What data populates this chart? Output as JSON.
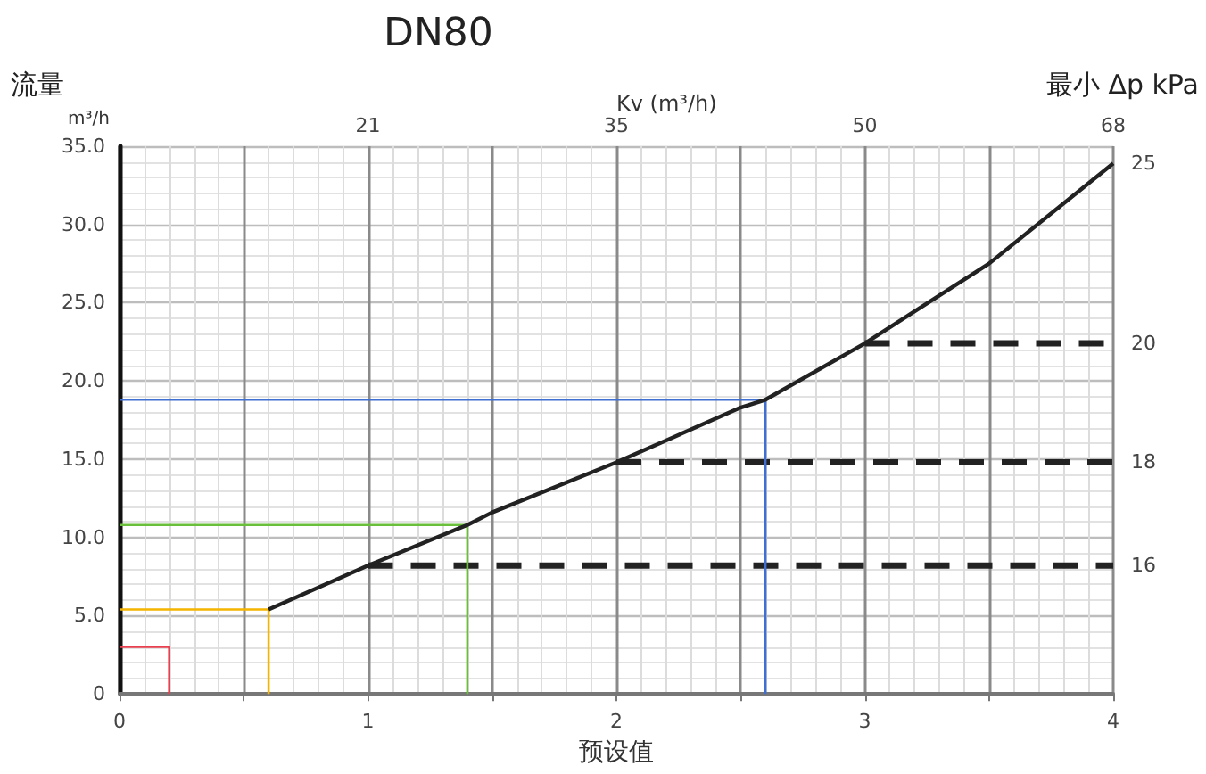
{
  "chart_data": {
    "type": "line",
    "title": "DN80",
    "xlabel": "预设值",
    "ylabel": "流量",
    "x2label": "Kv (m³/h)",
    "y2label": "最小 Δp kPa",
    "xlim": [
      0,
      4
    ],
    "xticks": [
      0,
      {
        "value": 0.5,
        "label": null
      },
      1,
      {
        "value": 1.5,
        "label": null
      },
      2,
      {
        "value": 2.5,
        "label": null
      },
      3,
      {
        "value": 3.5,
        "label": null
      },
      4
    ],
    "ylim": [
      0,
      35
    ],
    "yticks": [
      0,
      {
        "value": 5,
        "label": "5.0"
      },
      {
        "value": 10,
        "label": "10.0"
      },
      {
        "value": 15,
        "label": "15.0"
      },
      {
        "value": 20,
        "label": "20.0"
      },
      {
        "value": 25,
        "label": "25.0"
      },
      {
        "value": 30,
        "label": "30.0"
      },
      {
        "value": 35,
        "label": "35.0"
      }
    ],
    "grid": true,
    "marker": "none",
    "series": [
      {
        "name": "25",
        "color": "#222222",
        "line_style": "solid",
        "x": [
          0.6,
          1,
          1.4,
          1.5,
          2,
          2.5,
          2.6,
          3,
          3.5,
          4
        ],
        "values": [
          5.4,
          8.2,
          10.8,
          11.6,
          14.8,
          18.3,
          18.8,
          22.4,
          27.5,
          33.9
        ]
      },
      {
        "name": "16",
        "color": "#222222",
        "line_style": "dashed",
        "x": [
          1,
          4
        ],
        "values": [
          8.2,
          8.2
        ]
      },
      {
        "name": "18",
        "color": "#222222",
        "line_style": "dashed",
        "x": [
          2,
          4
        ],
        "values": [
          14.8,
          14.8
        ]
      },
      {
        "name": "20",
        "color": "#222222",
        "line_style": "dashed",
        "x": [
          3,
          4
        ],
        "values": [
          22.4,
          22.4
        ]
      },
      {
        "color": "#e8404f",
        "line_style": "solid",
        "x": [
          0,
          0.2,
          0.2
        ],
        "values": [
          3.0,
          3.0,
          0
        ]
      },
      {
        "color": "#f5b400",
        "line_style": "solid",
        "x": [
          0,
          0.6,
          0.6
        ],
        "values": [
          5.4,
          5.4,
          0
        ]
      },
      {
        "color": "#6abf3a",
        "line_style": "solid",
        "x": [
          0,
          1.4,
          1.4
        ],
        "values": [
          10.8,
          10.8,
          0
        ]
      },
      {
        "color": "#3f6fd0",
        "line_style": "solid",
        "x": [
          0,
          2.6,
          2.6
        ],
        "values": [
          18.8,
          18.8,
          0
        ]
      }
    ],
    "annotations": [
      "m³/h",
      "21",
      "35",
      "50",
      "68"
    ]
  }
}
